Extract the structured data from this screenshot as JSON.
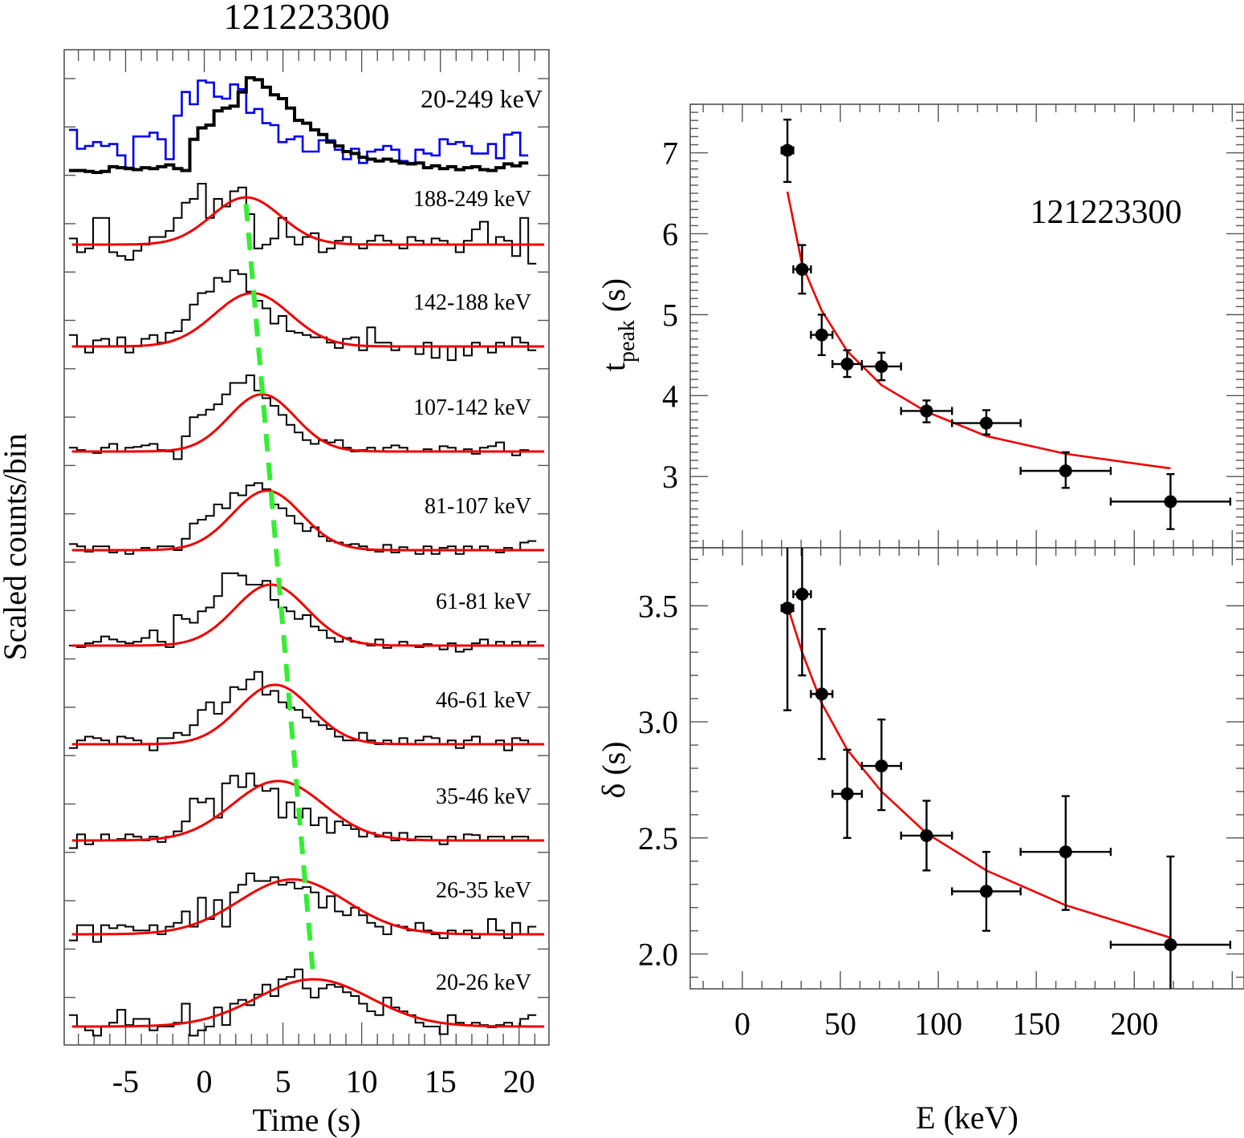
{
  "chart_data": [
    {
      "type": "line",
      "title": "121223300",
      "xlabel": "Time (s)",
      "ylabel": "Scaled counts/bin",
      "xlim": [
        -8.9,
        21.9
      ],
      "x_ticks": [
        -5,
        0,
        5,
        10,
        15,
        20
      ],
      "x_tick_labels": [
        "-5",
        "0",
        "5",
        "10",
        "15",
        "20"
      ],
      "bin_width_s": 0.512,
      "bin_start_s": -8.6,
      "total_band": {
        "label": "20-249 keV",
        "series": [
          {
            "name": "light curve 20-249 keV",
            "color": "#000000",
            "values": [
              0.02,
              0.02,
              0.01,
              0.0,
              0.01,
              0.06,
              0.05,
              0.04,
              0.03,
              0.05,
              0.04,
              0.06,
              0.08,
              0.04,
              0.02,
              0.35,
              0.47,
              0.5,
              0.65,
              0.68,
              0.7,
              0.85,
              1.0,
              0.98,
              0.9,
              0.82,
              0.78,
              0.68,
              0.55,
              0.52,
              0.45,
              0.4,
              0.32,
              0.28,
              0.22,
              0.2,
              0.16,
              0.14,
              0.12,
              0.14,
              0.12,
              0.1,
              0.09,
              0.1,
              0.05,
              0.07,
              0.04,
              0.06,
              0.03,
              0.05,
              0.06,
              0.03,
              0.02,
              0.05,
              0.09,
              0.07,
              0.1
            ]
          },
          {
            "name": "light curve (blue) 20-249 keV",
            "color": "#0000ee",
            "values": [
              0.45,
              0.25,
              0.28,
              0.32,
              0.28,
              0.3,
              0.18,
              0.05,
              0.38,
              0.38,
              0.42,
              0.35,
              0.14,
              0.6,
              0.85,
              0.72,
              0.97,
              0.95,
              0.8,
              0.78,
              0.93,
              0.88,
              0.63,
              0.67,
              0.52,
              0.5,
              0.32,
              0.35,
              0.38,
              0.22,
              0.22,
              0.34,
              0.34,
              0.24,
              0.14,
              0.25,
              0.1,
              0.22,
              0.24,
              0.28,
              0.24,
              0.12,
              0.1,
              0.24,
              0.2,
              0.18,
              0.35,
              0.3,
              0.32,
              0.28,
              0.2,
              0.2,
              0.3,
              0.15,
              0.4,
              0.42,
              0.18
            ]
          }
        ]
      },
      "bands": [
        {
          "label": "188-249 keV",
          "fit_peak_s": 2.65,
          "fit_sigma_s": 2.2,
          "fit_amp": 0.62,
          "fit_base": 0.0,
          "values": [
            0.08,
            -0.1,
            -0.05,
            0.35,
            0.35,
            -0.1,
            -0.15,
            -0.2,
            -0.08,
            0.0,
            0.1,
            0.1,
            0.18,
            0.35,
            0.55,
            0.6,
            0.8,
            0.35,
            0.6,
            0.5,
            0.7,
            0.75,
            0.4,
            -0.05,
            0.0,
            0.08,
            0.35,
            0.1,
            0.0,
            0.1,
            0.15,
            -0.1,
            -0.05,
            0.05,
            0.1,
            0.0,
            -0.05,
            0.05,
            0.12,
            0.05,
            0.0,
            -0.05,
            0.1,
            0.05,
            0.0,
            0.08,
            0.05,
            0.0,
            -0.1,
            0.05,
            0.2,
            0.3,
            0.0,
            0.1,
            0.05,
            -0.15,
            0.35,
            -0.25
          ]
        },
        {
          "label": "142-188 keV",
          "fit_peak_s": 3.06,
          "fit_sigma_s": 2.4,
          "fit_amp": 0.7,
          "fit_base": 0.0,
          "values": [
            0.15,
            0.0,
            -0.08,
            0.08,
            0.1,
            0.0,
            0.12,
            -0.08,
            0.0,
            0.1,
            0.15,
            0.05,
            0.18,
            0.2,
            0.35,
            0.55,
            0.7,
            0.72,
            0.9,
            0.85,
            1.0,
            0.95,
            0.72,
            0.6,
            0.5,
            0.3,
            0.4,
            0.2,
            0.18,
            0.15,
            0.12,
            0.12,
            0.05,
            -0.02,
            0.1,
            0.12,
            -0.05,
            0.25,
            0.05,
            0.05,
            -0.05,
            0.0,
            0.0,
            -0.1,
            0.05,
            -0.15,
            0.0,
            -0.18,
            0.0,
            -0.12,
            0.05,
            0.0,
            -0.08,
            0.05,
            0.0,
            0.12,
            0.05,
            -0.05
          ]
        },
        {
          "label": "107-142 keV",
          "fit_peak_s": 3.67,
          "fit_sigma_s": 2.1,
          "fit_amp": 0.75,
          "fit_base": 0.0,
          "values": [
            0.05,
            0.02,
            0.0,
            -0.02,
            0.05,
            0.1,
            0.0,
            0.05,
            0.06,
            0.08,
            0.1,
            0.02,
            0.0,
            -0.1,
            0.2,
            0.45,
            0.48,
            0.55,
            0.62,
            0.75,
            0.9,
            0.9,
            1.0,
            0.8,
            0.7,
            0.6,
            0.48,
            0.35,
            0.25,
            0.15,
            0.1,
            0.15,
            0.12,
            0.15,
            0.05,
            0.0,
            0.02,
            0.05,
            0.0,
            0.05,
            0.08,
            0.05,
            0.0,
            0.0,
            0.03,
            0.0,
            0.07,
            0.05,
            0.0,
            0.03,
            -0.03,
            0.05,
            0.07,
            0.12,
            0.0,
            -0.05,
            0.02,
            0.0
          ]
        },
        {
          "label": "81-107 keV",
          "fit_peak_s": 3.98,
          "fit_sigma_s": 2.2,
          "fit_amp": 0.78,
          "fit_base": 0.0,
          "values": [
            0.08,
            0.05,
            -0.02,
            0.05,
            0.05,
            -0.03,
            0.0,
            -0.05,
            0.0,
            0.03,
            0.0,
            0.05,
            0.05,
            0.0,
            0.15,
            0.35,
            0.4,
            0.45,
            0.6,
            0.55,
            0.75,
            0.72,
            0.85,
            0.88,
            0.8,
            0.6,
            0.55,
            0.45,
            0.35,
            0.25,
            0.3,
            0.18,
            0.12,
            0.1,
            0.07,
            0.08,
            0.05,
            0.0,
            -0.02,
            0.07,
            -0.03,
            0.04,
            0.0,
            -0.05,
            0.05,
            -0.05,
            0.03,
            0.05,
            -0.05,
            0.05,
            0.0,
            0.05,
            0.0,
            -0.03,
            0.03,
            0.0,
            0.1,
            0.12
          ]
        },
        {
          "label": "61-81 keV",
          "fit_peak_s": 4.23,
          "fit_sigma_s": 2.3,
          "fit_amp": 0.8,
          "fit_base": 0.0,
          "values": [
            0.0,
            -0.02,
            0.03,
            0.05,
            0.12,
            0.08,
            0.05,
            0.03,
            0.05,
            0.1,
            0.2,
            0.05,
            -0.02,
            0.4,
            0.35,
            0.3,
            0.45,
            0.5,
            0.65,
            0.95,
            0.95,
            0.92,
            0.8,
            0.8,
            0.85,
            0.6,
            0.5,
            0.45,
            0.35,
            0.4,
            0.25,
            0.2,
            0.1,
            0.05,
            0.1,
            0.05,
            0.03,
            0.0,
            0.08,
            -0.03,
            0.0,
            0.05,
            0.0,
            -0.02,
            0.02,
            0.0,
            -0.05,
            0.03,
            -0.08,
            -0.05,
            0.03,
            0.08,
            0.0,
            0.05,
            0.0,
            0.05,
            0.0,
            0.05
          ]
        },
        {
          "label": "46-61 keV",
          "fit_peak_s": 4.49,
          "fit_sigma_s": 2.3,
          "fit_amp": 0.78,
          "fit_base": 0.0,
          "values": [
            -0.05,
            0.05,
            0.1,
            0.08,
            0.05,
            0.0,
            0.1,
            0.08,
            0.05,
            0.0,
            -0.08,
            0.08,
            0.08,
            0.15,
            0.12,
            0.25,
            0.45,
            0.55,
            0.4,
            0.55,
            0.75,
            0.72,
            0.85,
            0.95,
            0.65,
            0.7,
            0.55,
            0.48,
            0.45,
            0.35,
            0.3,
            0.25,
            0.2,
            0.1,
            0.05,
            0.05,
            0.15,
            0.05,
            0.0,
            0.05,
            0.0,
            0.08,
            0.0,
            0.05,
            0.1,
            0.08,
            0.0,
            0.05,
            -0.05,
            0.05,
            0.1,
            0.0,
            0.0,
            0.05,
            -0.08,
            0.08,
            0.05,
            0.0
          ]
        },
        {
          "label": "35-46 keV",
          "fit_peak_s": 4.69,
          "fit_sigma_s": 2.9,
          "fit_amp": 0.78,
          "fit_base": 0.0,
          "values": [
            -0.1,
            0.08,
            -0.05,
            0.0,
            0.08,
            0.0,
            0.02,
            0.08,
            0.05,
            0.0,
            0.05,
            -0.02,
            0.05,
            0.12,
            0.25,
            0.55,
            0.5,
            0.55,
            0.3,
            0.75,
            0.85,
            0.7,
            0.88,
            0.72,
            0.65,
            0.68,
            0.3,
            0.5,
            0.3,
            0.42,
            0.2,
            0.3,
            0.1,
            0.25,
            0.2,
            0.15,
            0.05,
            0.1,
            0.05,
            0.1,
            0.0,
            0.1,
            0.0,
            0.05,
            0.05,
            0.0,
            -0.05,
            0.05,
            0.0,
            0.08,
            0.07,
            0.0,
            0.05,
            0.05,
            0.0,
            0.05,
            0.05,
            0.0
          ]
        },
        {
          "label": "26-35 keV",
          "fit_peak_s": 5.61,
          "fit_sigma_s": 3.4,
          "fit_amp": 0.72,
          "fit_base": 0.0,
          "values": [
            -0.08,
            0.12,
            0.12,
            -0.1,
            0.12,
            0.08,
            0.12,
            0.1,
            0.05,
            0.05,
            0.12,
            0.0,
            0.1,
            0.15,
            0.3,
            0.1,
            0.48,
            0.2,
            0.45,
            0.1,
            0.55,
            0.65,
            0.8,
            0.7,
            0.7,
            0.75,
            0.65,
            0.68,
            0.6,
            0.62,
            0.55,
            0.35,
            0.5,
            0.3,
            0.25,
            0.35,
            0.25,
            0.15,
            0.1,
            0.0,
            0.12,
            0.1,
            0.05,
            0.15,
            0.05,
            0.0,
            -0.05,
            0.05,
            0.0,
            0.05,
            -0.05,
            0.0,
            0.2,
            0.05,
            -0.05,
            0.15,
            0.0,
            0.1
          ]
        },
        {
          "label": "20-26 keV",
          "fit_peak_s": 6.94,
          "fit_sigma_s": 3.6,
          "fit_amp": 0.62,
          "fit_base": 0.0,
          "values": [
            0.15,
            0.0,
            -0.05,
            -0.12,
            0.0,
            0.05,
            0.22,
            0.02,
            0.1,
            0.1,
            -0.05,
            0.0,
            0.0,
            0.05,
            0.3,
            -0.12,
            -0.05,
            0.0,
            0.25,
            0.02,
            0.3,
            0.35,
            0.28,
            0.42,
            0.55,
            0.4,
            0.62,
            0.65,
            0.75,
            0.5,
            0.38,
            0.5,
            0.55,
            0.52,
            0.45,
            0.4,
            0.3,
            0.2,
            0.15,
            0.38,
            0.25,
            0.2,
            0.15,
            0.05,
            0.0,
            0.0,
            -0.1,
            0.15,
            0.05,
            0.02,
            0.05,
            0.02,
            -0.01,
            0.02,
            0.05,
            0.0,
            0.1,
            0.15
          ]
        }
      ],
      "peak_trend_line": {
        "color": "#33ee33",
        "style": "dashed",
        "from_band": "188-249 keV",
        "to_band": "20-26 keV"
      },
      "fit_color": "#ee0000"
    },
    {
      "type": "scatter",
      "annotation": "121223300",
      "xlabel": "E (keV)",
      "ylabel": "t_peak (s)",
      "ylabel_main": "t",
      "ylabel_sub": "peak",
      "ylabel_unit": " (s)",
      "xlim": [
        -26.6,
        256
      ],
      "ylim": [
        2.12,
        7.6
      ],
      "y_ticks": [
        3,
        4,
        5,
        6,
        7
      ],
      "y_tick_labels": [
        "3",
        "4",
        "5",
        "6",
        "7"
      ],
      "points": [
        {
          "E": 23.0,
          "E_err": 3.0,
          "y": 7.03,
          "y_lo": 6.64,
          "y_hi": 7.41
        },
        {
          "E": 30.5,
          "E_err": 4.5,
          "y": 5.56,
          "y_lo": 5.26,
          "y_hi": 5.86
        },
        {
          "E": 40.5,
          "E_err": 5.5,
          "y": 4.75,
          "y_lo": 4.5,
          "y_hi": 5.0
        },
        {
          "E": 53.5,
          "E_err": 7.5,
          "y": 4.39,
          "y_lo": 4.23,
          "y_hi": 4.56
        },
        {
          "E": 71.0,
          "E_err": 10.0,
          "y": 4.36,
          "y_lo": 4.19,
          "y_hi": 4.53
        },
        {
          "E": 94.0,
          "E_err": 13.0,
          "y": 3.81,
          "y_lo": 3.67,
          "y_hi": 3.94
        },
        {
          "E": 124.5,
          "E_err": 17.5,
          "y": 3.66,
          "y_lo": 3.52,
          "y_hi": 3.82
        },
        {
          "E": 165.0,
          "E_err": 23.0,
          "y": 3.07,
          "y_lo": 2.86,
          "y_hi": 3.3
        },
        {
          "E": 218.5,
          "E_err": 30.5,
          "y": 2.69,
          "y_lo": 2.35,
          "y_hi": 3.03
        }
      ],
      "fit": {
        "E": [
          23,
          30.5,
          40.5,
          53.5,
          71,
          94,
          124.5,
          165,
          218.5
        ],
        "y": [
          6.52,
          5.62,
          5.05,
          4.55,
          4.13,
          3.8,
          3.5,
          3.28,
          3.1
        ]
      }
    },
    {
      "type": "scatter",
      "xlabel": "E (keV)",
      "ylabel": "δ (s)",
      "xlim": [
        -26.6,
        256
      ],
      "ylim": [
        1.85,
        3.75
      ],
      "x_ticks": [
        0,
        50,
        100,
        150,
        200
      ],
      "x_tick_labels": [
        "0",
        "50",
        "100",
        "150",
        "200"
      ],
      "y_ticks": [
        2.0,
        2.5,
        3.0,
        3.5
      ],
      "y_tick_labels": [
        "2.0",
        "2.5",
        "3.0",
        "3.5"
      ],
      "points": [
        {
          "E": 23.0,
          "E_err": 3.0,
          "y": 3.49,
          "y_lo": 3.05,
          "y_hi": 3.75
        },
        {
          "E": 30.5,
          "E_err": 4.5,
          "y": 3.55,
          "y_lo": 3.2,
          "y_hi": 3.75
        },
        {
          "E": 40.5,
          "E_err": 5.5,
          "y": 3.12,
          "y_lo": 2.84,
          "y_hi": 3.4
        },
        {
          "E": 53.5,
          "E_err": 7.5,
          "y": 2.69,
          "y_lo": 2.5,
          "y_hi": 2.88
        },
        {
          "E": 71.0,
          "E_err": 10.0,
          "y": 2.81,
          "y_lo": 2.62,
          "y_hi": 3.01
        },
        {
          "E": 94.0,
          "E_err": 13.0,
          "y": 2.51,
          "y_lo": 2.36,
          "y_hi": 2.66
        },
        {
          "E": 124.5,
          "E_err": 17.5,
          "y": 2.27,
          "y_lo": 2.1,
          "y_hi": 2.44
        },
        {
          "E": 165.0,
          "E_err": 23.0,
          "y": 2.44,
          "y_lo": 2.19,
          "y_hi": 2.68
        },
        {
          "E": 218.5,
          "E_err": 30.5,
          "y": 2.04,
          "y_lo": 1.85,
          "y_hi": 2.42
        }
      ],
      "fit": {
        "E": [
          23,
          30.5,
          40.5,
          53.5,
          71,
          94,
          124.5,
          165,
          218.5
        ],
        "y": [
          3.5,
          3.3,
          3.08,
          2.88,
          2.7,
          2.52,
          2.36,
          2.21,
          2.07
        ]
      }
    }
  ]
}
